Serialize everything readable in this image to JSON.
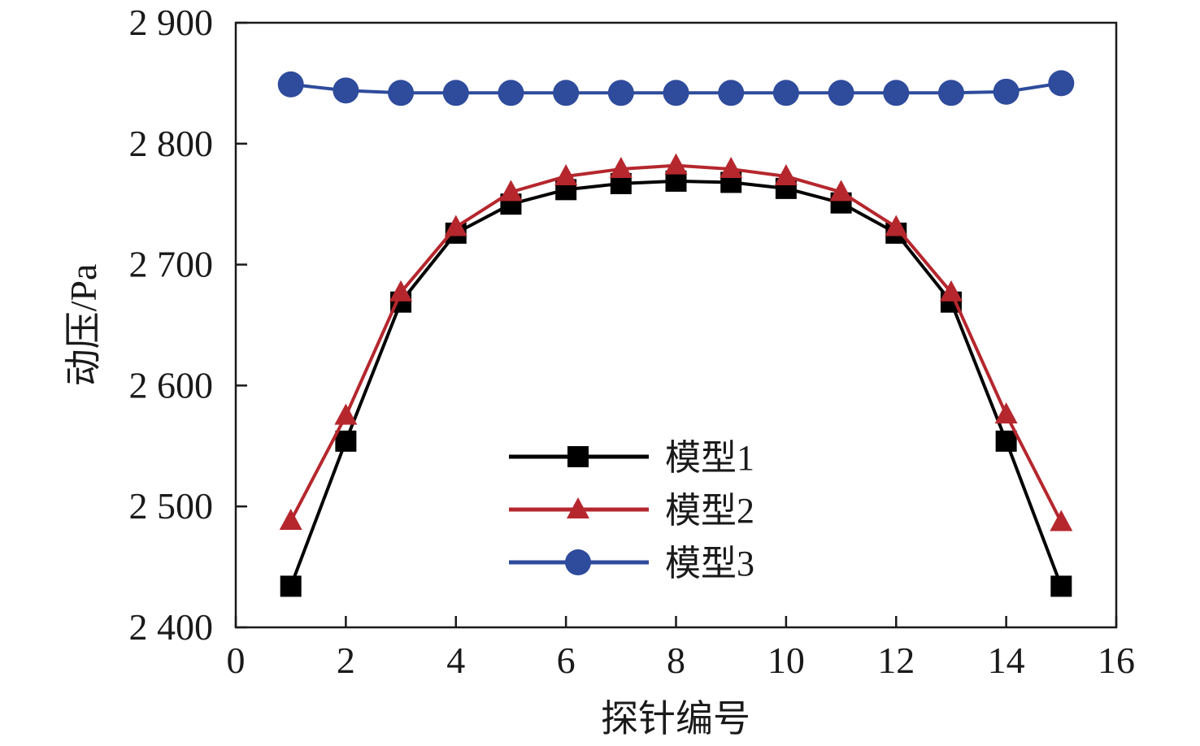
{
  "chart_data": {
    "type": "line",
    "xlabel": "探针编号",
    "ylabel": "动压/Pa",
    "xlim": [
      0,
      16
    ],
    "ylim": [
      2400,
      2900
    ],
    "xticks": [
      0,
      2,
      4,
      6,
      8,
      10,
      12,
      14,
      16
    ],
    "yticks": [
      2400,
      2500,
      2600,
      2700,
      2800,
      2900
    ],
    "ytick_labels": [
      "2 400",
      "2 500",
      "2 600",
      "2 700",
      "2 800",
      "2 900"
    ],
    "grid": false,
    "legend_position": "center",
    "x": [
      1,
      2,
      3,
      4,
      5,
      6,
      7,
      8,
      9,
      10,
      11,
      12,
      13,
      14,
      15
    ],
    "series": [
      {
        "name": "模型1",
        "marker": "square",
        "color": "#000000",
        "values": [
          2434,
          2554,
          2669,
          2726,
          2750,
          2762,
          2767,
          2769,
          2768,
          2763,
          2751,
          2726,
          2669,
          2554,
          2434
        ]
      },
      {
        "name": "模型2",
        "marker": "triangle",
        "color": "#b5272d",
        "values": [
          2488,
          2575,
          2677,
          2731,
          2760,
          2773,
          2779,
          2782,
          2779,
          2773,
          2760,
          2731,
          2677,
          2576,
          2487
        ]
      },
      {
        "name": "模型3",
        "marker": "circle",
        "color": "#2e4b9c",
        "values": [
          2849,
          2844,
          2842,
          2842,
          2842,
          2842,
          2842,
          2842,
          2842,
          2842,
          2842,
          2842,
          2842,
          2843,
          2850
        ]
      }
    ]
  }
}
